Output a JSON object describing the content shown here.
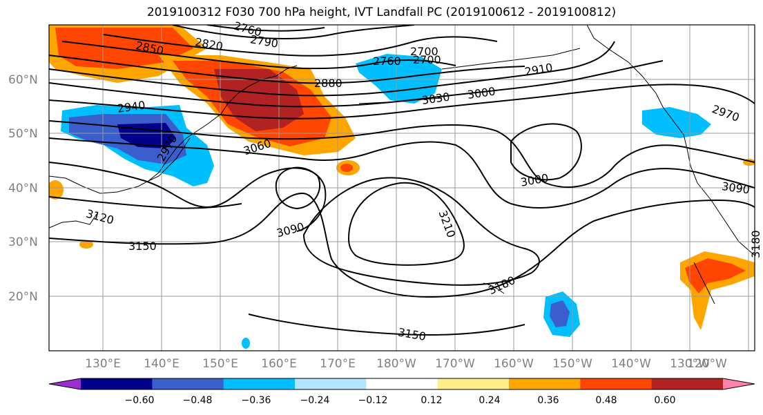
{
  "title": "2019100312 F030 700 hPa height, IVT Landfall PC (2019100612 - 2019100812)",
  "lat_labels": [
    "60°N",
    "50°N",
    "40°N",
    "30°N",
    "20°N"
  ],
  "lon_labels": [
    "130°E",
    "140°E",
    "150°E",
    "160°E",
    "170°E",
    "180°W",
    "170°W",
    "160°W",
    "150°W",
    "140°W",
    "130°W",
    "120°W"
  ],
  "contour_labels": [
    "2760",
    "2790",
    "2850",
    "2820",
    "2760",
    "2700",
    "2700",
    "2910",
    "2880",
    "3030",
    "3000",
    "2940",
    "2970",
    "2970",
    "3060",
    "3000",
    "3090",
    "3120",
    "3090",
    "3210",
    "3150",
    "3180",
    "3180",
    "3150"
  ],
  "colorbar": {
    "ticks": [
      "−0.60",
      "−0.48",
      "−0.36",
      "−0.24",
      "−0.12",
      "0.12",
      "0.24",
      "0.36",
      "0.48",
      "0.60"
    ],
    "colors": [
      "#9b30d0",
      "#00008b",
      "#3a5fcd",
      "#00bfff",
      "#b2e5ff",
      "#ffffff",
      "#ffec8b",
      "#ffa500",
      "#ff4500",
      "#b22222",
      "#ff82ab"
    ]
  }
}
